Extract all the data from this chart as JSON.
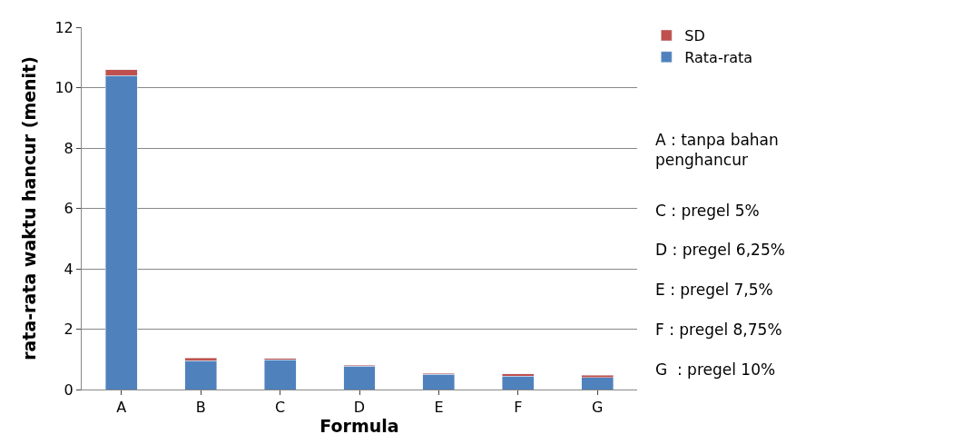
{
  "chart_data": {
    "type": "bar",
    "stacked": true,
    "xlabel": "Formula",
    "ylabel": "rata-rata waktu hancur (menit)",
    "categories": [
      "A",
      "B",
      "C",
      "D",
      "E",
      "F",
      "G"
    ],
    "series": [
      {
        "name": "Rata-rata",
        "color": "#4f81bd",
        "values": [
          10.4,
          0.95,
          0.98,
          0.77,
          0.5,
          0.45,
          0.4
        ]
      },
      {
        "name": "SD",
        "color": "#c0504d",
        "values": [
          0.2,
          0.1,
          0.05,
          0.03,
          0.03,
          0.07,
          0.07
        ]
      }
    ],
    "ylim": [
      0,
      12
    ],
    "yticks": [
      0,
      2,
      4,
      6,
      8,
      10,
      12
    ],
    "grid": "y",
    "legend": "top right",
    "annotations": [
      "A : tanpa bahan\npenghancur",
      "C : pregel 5%",
      "D : pregel 6,25%",
      "E : pregel 7,5%",
      "F : pregel 8,75%",
      "G  : pregel 10%"
    ]
  }
}
